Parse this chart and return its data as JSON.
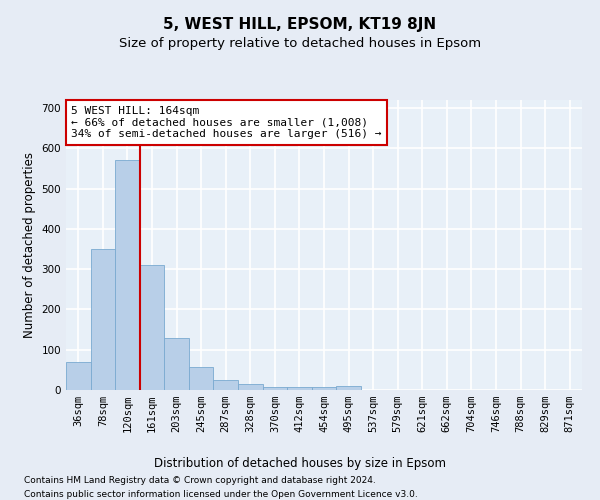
{
  "title": "5, WEST HILL, EPSOM, KT19 8JN",
  "subtitle": "Size of property relative to detached houses in Epsom",
  "xlabel": "Distribution of detached houses by size in Epsom",
  "ylabel": "Number of detached properties",
  "footer_line1": "Contains HM Land Registry data © Crown copyright and database right 2024.",
  "footer_line2": "Contains public sector information licensed under the Open Government Licence v3.0.",
  "bin_labels": [
    "36sqm",
    "78sqm",
    "120sqm",
    "161sqm",
    "203sqm",
    "245sqm",
    "287sqm",
    "328sqm",
    "370sqm",
    "412sqm",
    "454sqm",
    "495sqm",
    "537sqm",
    "579sqm",
    "621sqm",
    "662sqm",
    "704sqm",
    "746sqm",
    "788sqm",
    "829sqm",
    "871sqm"
  ],
  "bar_values": [
    70,
    350,
    570,
    310,
    130,
    57,
    25,
    15,
    8,
    8,
    8,
    10,
    0,
    0,
    0,
    0,
    0,
    0,
    0,
    0,
    0
  ],
  "bar_color": "#b8cfe8",
  "bar_edge_color": "#7aaad0",
  "vline_x": 2.5,
  "vline_color": "#cc0000",
  "annotation_text": "5 WEST HILL: 164sqm\n← 66% of detached houses are smaller (1,008)\n34% of semi-detached houses are larger (516) →",
  "annotation_box_color": "#ffffff",
  "annotation_box_edge_color": "#cc0000",
  "ylim": [
    0,
    720
  ],
  "yticks": [
    0,
    100,
    200,
    300,
    400,
    500,
    600,
    700
  ],
  "background_color": "#e6ecf5",
  "plot_bg_color": "#e8f0f8",
  "grid_color": "#ffffff",
  "title_fontsize": 11,
  "subtitle_fontsize": 9.5,
  "axis_label_fontsize": 8.5,
  "tick_fontsize": 7.5,
  "annotation_fontsize": 8,
  "footer_fontsize": 6.5
}
